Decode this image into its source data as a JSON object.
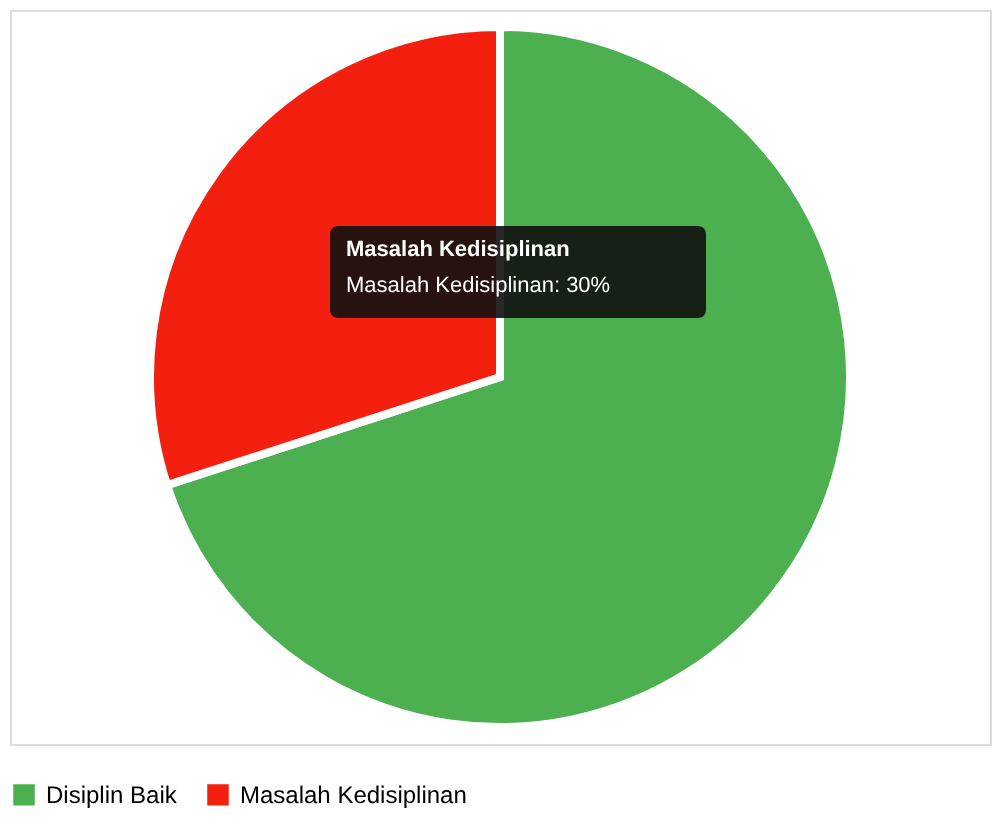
{
  "chart_data": {
    "type": "pie",
    "categories": [
      "Disiplin Baik",
      "Masalah Kedisiplinan"
    ],
    "values": [
      70,
      30
    ],
    "colors": [
      "#4caf50",
      "#f3200f"
    ],
    "legend": "bottom",
    "annotations": [
      "Masalah Kedisiplinan",
      "Masalah Kedisiplinan: 30%"
    ]
  }
}
